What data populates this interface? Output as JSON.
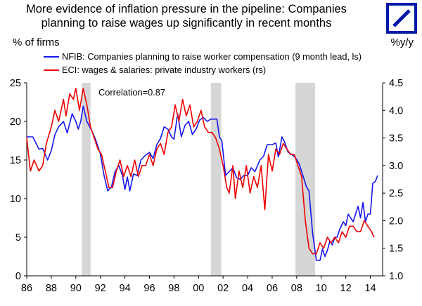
{
  "title_line1": "More evidence of inflation pressure in the pipeline: Companies",
  "title_line2": "planning to raise wages up significantly in recent months",
  "brand_color": "#0018a8",
  "logo_icon": "deutsche-bank-slash-square",
  "chart_data": {
    "type": "line",
    "ylabel_left": "% of firms",
    "ylabel_right": "%y/y",
    "annotation": "Correlation=0.87",
    "x_tick_labels": [
      "86",
      "88",
      "90",
      "92",
      "94",
      "96",
      "98",
      "00",
      "02",
      "04",
      "06",
      "08",
      "10",
      "12",
      "14"
    ],
    "x_range": [
      1986,
      2015
    ],
    "ylim_left": [
      0,
      25
    ],
    "yticks_left": [
      0,
      5,
      10,
      15,
      20,
      25
    ],
    "ylim_right": [
      1.0,
      4.5
    ],
    "yticks_right": [
      "1.0",
      "1.5",
      "2.0",
      "2.5",
      "3.0",
      "3.5",
      "4.0",
      "4.5"
    ],
    "recessions": [
      [
        1990.5,
        1991.2
      ],
      [
        2001.0,
        2001.85
      ],
      [
        2007.9,
        2009.5
      ]
    ],
    "series": [
      {
        "name": "NFIB: Companies planning to raise worker compensation (9 month lead, ls)",
        "color": "#1515ee",
        "axis": "left",
        "x": [
          1986.0,
          1986.5,
          1987.0,
          1987.3,
          1987.7,
          1988.0,
          1988.3,
          1988.6,
          1989.0,
          1989.3,
          1989.7,
          1990.0,
          1990.2,
          1990.4,
          1990.6,
          1990.9,
          1991.3,
          1991.6,
          1992.0,
          1992.3,
          1992.6,
          1992.9,
          1993.2,
          1993.5,
          1993.8,
          1994.0,
          1994.2,
          1994.4,
          1994.7,
          1995.0,
          1995.3,
          1995.6,
          1996.0,
          1996.3,
          1996.6,
          1996.9,
          1997.2,
          1997.5,
          1997.8,
          1998.0,
          1998.3,
          1998.6,
          1998.9,
          1999.2,
          1999.5,
          1999.8,
          2000.1,
          2000.4,
          2000.7,
          2001.0,
          2001.2,
          2001.5,
          2001.7,
          2001.9,
          2002.2,
          2002.5,
          2002.8,
          2003.1,
          2003.4,
          2003.7,
          2004.0,
          2004.3,
          2004.6,
          2005.0,
          2005.3,
          2005.6,
          2006.0,
          2006.3,
          2006.5,
          2006.8,
          2007.0,
          2007.3,
          2007.6,
          2007.9,
          2008.2,
          2008.5,
          2008.8,
          2009.0,
          2009.3,
          2009.6,
          2009.9,
          2010.1,
          2010.3,
          2010.5,
          2010.7,
          2010.9,
          2011.1,
          2011.3,
          2011.5,
          2011.8,
          2012.0,
          2012.2,
          2012.4,
          2012.6,
          2012.8,
          2013.0,
          2013.2,
          2013.4,
          2013.6,
          2013.8,
          2014.0,
          2014.2,
          2014.4,
          2014.6
        ],
        "y": [
          18.0,
          18.0,
          16.4,
          16.5,
          15.0,
          16.2,
          18.3,
          19.3,
          20.0,
          18.5,
          21.0,
          20.0,
          19.0,
          20.0,
          22.0,
          20.0,
          18.8,
          17.7,
          15.8,
          13.0,
          11.0,
          11.5,
          13.5,
          14.3,
          13.0,
          11.2,
          12.8,
          11.0,
          13.2,
          13.0,
          15.0,
          15.5,
          16.0,
          15.2,
          17.0,
          17.8,
          19.3,
          19.0,
          18.0,
          17.7,
          21.0,
          18.0,
          19.5,
          20.0,
          18.3,
          19.0,
          20.2,
          20.5,
          20.0,
          20.3,
          20.3,
          20.3,
          18.0,
          17.5,
          13.0,
          13.5,
          14.0,
          12.7,
          12.5,
          13.0,
          13.0,
          14.0,
          13.5,
          15.0,
          15.5,
          17.0,
          17.0,
          17.2,
          15.4,
          18.0,
          17.4,
          16.0,
          15.7,
          15.3,
          14.5,
          13.0,
          11.5,
          11.0,
          5.5,
          2.0,
          2.0,
          3.5,
          2.5,
          3.3,
          4.5,
          4.0,
          5.0,
          5.0,
          6.0,
          7.0,
          6.5,
          8.0,
          7.5,
          7.0,
          8.0,
          9.0,
          7.5,
          9.5,
          7.0,
          8.0,
          8.0,
          12.0,
          12.2,
          13.0
        ]
      },
      {
        "name": "ECI: wages & salaries: private industry workers (rs)",
        "color": "#ee0000",
        "axis": "right",
        "x": [
          1986.0,
          1986.3,
          1986.6,
          1987.0,
          1987.3,
          1987.6,
          1988.0,
          1988.3,
          1988.6,
          1989.0,
          1989.2,
          1989.5,
          1989.8,
          1990.0,
          1990.3,
          1990.6,
          1990.9,
          1991.2,
          1991.5,
          1991.8,
          1992.1,
          1992.4,
          1992.7,
          1993.0,
          1993.3,
          1993.6,
          1993.9,
          1994.2,
          1994.5,
          1994.8,
          1995.1,
          1995.4,
          1995.7,
          1996.0,
          1996.3,
          1996.6,
          1996.9,
          1997.2,
          1997.5,
          1997.8,
          1998.1,
          1998.4,
          1998.7,
          1999.0,
          1999.3,
          1999.6,
          1999.9,
          2000.2,
          2000.5,
          2000.8,
          2001.1,
          2001.4,
          2001.7,
          2002.0,
          2002.3,
          2002.5,
          2002.8,
          2003.0,
          2003.3,
          2003.6,
          2003.9,
          2004.2,
          2004.5,
          2004.8,
          2005.1,
          2005.4,
          2005.7,
          2006.0,
          2006.3,
          2006.6,
          2006.9,
          2007.2,
          2007.5,
          2007.8,
          2008.1,
          2008.4,
          2008.7,
          2009.0,
          2009.3,
          2009.6,
          2009.9,
          2010.2,
          2010.5,
          2010.8,
          2011.1,
          2011.4,
          2011.7,
          2012.0,
          2012.3,
          2012.6,
          2012.9,
          2013.2,
          2013.5,
          2013.8,
          2014.1,
          2014.3
        ],
        "y": [
          3.5,
          2.9,
          3.1,
          2.9,
          3.0,
          3.4,
          3.7,
          4.0,
          3.8,
          4.2,
          3.9,
          4.3,
          4.2,
          4.4,
          4.0,
          4.4,
          4.1,
          3.7,
          3.5,
          3.3,
          3.2,
          2.9,
          2.6,
          2.6,
          2.9,
          3.1,
          2.8,
          3.0,
          2.8,
          3.1,
          2.8,
          3.0,
          3.0,
          3.2,
          3.0,
          3.3,
          3.4,
          3.2,
          3.6,
          3.7,
          4.1,
          3.8,
          4.2,
          3.9,
          4.1,
          3.7,
          3.8,
          4.0,
          3.7,
          3.6,
          3.6,
          3.5,
          3.3,
          3.0,
          2.6,
          2.5,
          3.0,
          2.4,
          2.9,
          2.6,
          3.0,
          2.5,
          2.8,
          2.6,
          3.0,
          2.2,
          3.2,
          2.9,
          3.3,
          3.2,
          3.4,
          3.3,
          3.2,
          3.2,
          3.0,
          2.8,
          2.0,
          1.5,
          1.4,
          1.4,
          1.6,
          1.5,
          1.7,
          1.6,
          1.7,
          1.6,
          1.8,
          1.7,
          1.9,
          1.9,
          1.8,
          1.8,
          2.0,
          1.9,
          1.8,
          1.7
        ]
      }
    ]
  }
}
